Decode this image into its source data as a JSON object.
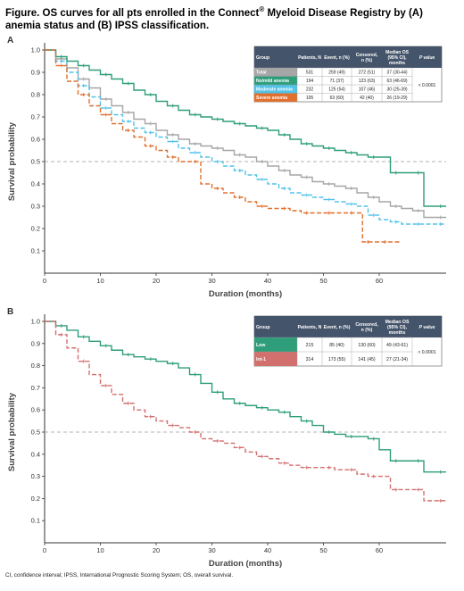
{
  "figure": {
    "title_pre": "Figure. OS curves for all pts enrolled in the Connect",
    "title_reg": "®",
    "title_post": " Myeloid Disease Registry by (A) anemia status and (B) IPSS classification.",
    "footnote": "CI, confidence interval; IPSS, International Prognostic Scoring System; OS, overall survival."
  },
  "table_headers": [
    "Group",
    "Patients, N",
    "Event, n (%)",
    "Censored, n (%)",
    "Median OS (95% CI), months",
    "P value"
  ],
  "chart_data": [
    {
      "panel": "A",
      "type": "line",
      "xlabel": "Duration (months)",
      "ylabel": "Survival probability",
      "xlim": [
        0,
        72
      ],
      "ylim": [
        0,
        1.0
      ],
      "xticks": [
        0,
        10,
        20,
        30,
        40,
        50,
        60
      ],
      "yticks": [
        0.1,
        0.2,
        0.3,
        0.4,
        0.5,
        0.6,
        0.7,
        0.8,
        0.9,
        1.0
      ],
      "reference_line": 0.5,
      "p_value": "< 0.0001",
      "series": [
        {
          "name": "Total",
          "color": "#a6a6a6",
          "patients": "531",
          "event": "259 (49)",
          "censored": "272 (51)",
          "median_os": "37 (30-44)",
          "x": [
            0,
            2,
            4,
            6,
            8,
            10,
            12,
            14,
            16,
            18,
            20,
            22,
            24,
            26,
            28,
            30,
            32,
            34,
            36,
            38,
            40,
            42,
            44,
            46,
            48,
            50,
            52,
            54,
            56,
            58,
            60,
            62,
            64,
            66,
            68,
            70
          ],
          "y": [
            1.0,
            0.96,
            0.92,
            0.87,
            0.83,
            0.78,
            0.75,
            0.72,
            0.69,
            0.67,
            0.64,
            0.62,
            0.6,
            0.58,
            0.57,
            0.56,
            0.55,
            0.53,
            0.52,
            0.5,
            0.48,
            0.46,
            0.44,
            0.43,
            0.41,
            0.4,
            0.39,
            0.38,
            0.36,
            0.34,
            0.32,
            0.3,
            0.29,
            0.28,
            0.25,
            0.25
          ]
        },
        {
          "name": "No/mild anemia",
          "color": "#2e9e7a",
          "patients": "194",
          "event": "71 (37)",
          "censored": "123 (63)",
          "median_os": "63 (46-69)",
          "x": [
            0,
            2,
            4,
            6,
            8,
            10,
            12,
            14,
            16,
            18,
            20,
            22,
            24,
            26,
            28,
            30,
            32,
            34,
            36,
            38,
            40,
            42,
            44,
            46,
            48,
            50,
            52,
            54,
            56,
            58,
            60,
            62,
            64,
            66,
            68,
            70
          ],
          "y": [
            1.0,
            0.97,
            0.95,
            0.93,
            0.91,
            0.89,
            0.87,
            0.85,
            0.82,
            0.8,
            0.77,
            0.75,
            0.73,
            0.71,
            0.7,
            0.69,
            0.68,
            0.67,
            0.66,
            0.65,
            0.64,
            0.62,
            0.6,
            0.58,
            0.57,
            0.56,
            0.55,
            0.54,
            0.53,
            0.52,
            0.52,
            0.45,
            0.45,
            0.45,
            0.3,
            0.3
          ]
        },
        {
          "name": "Moderate anemia",
          "color": "#52c2e8",
          "patients": "232",
          "event": "125 (54)",
          "censored": "107 (46)",
          "median_os": "30 (25-39)",
          "x": [
            0,
            2,
            4,
            6,
            8,
            10,
            12,
            14,
            16,
            18,
            20,
            22,
            24,
            26,
            28,
            30,
            32,
            34,
            36,
            38,
            40,
            42,
            44,
            46,
            48,
            50,
            52,
            54,
            56,
            58,
            60,
            62,
            64,
            66,
            68,
            70
          ],
          "y": [
            1.0,
            0.95,
            0.9,
            0.84,
            0.79,
            0.74,
            0.71,
            0.68,
            0.65,
            0.63,
            0.61,
            0.59,
            0.56,
            0.54,
            0.52,
            0.5,
            0.48,
            0.46,
            0.44,
            0.42,
            0.4,
            0.38,
            0.36,
            0.35,
            0.34,
            0.33,
            0.32,
            0.31,
            0.3,
            0.26,
            0.24,
            0.23,
            0.22,
            0.22,
            0.22,
            0.22
          ]
        },
        {
          "name": "Severe anemia",
          "color": "#e0702e",
          "patients": "105",
          "event": "63 (60)",
          "censored": "42 (40)",
          "median_os": "26 (19-29)",
          "x": [
            0,
            2,
            4,
            6,
            8,
            10,
            12,
            14,
            16,
            18,
            20,
            22,
            24,
            26,
            28,
            30,
            32,
            34,
            36,
            38,
            40,
            42,
            44,
            46,
            48,
            50,
            52,
            54,
            56,
            57,
            58,
            60,
            62
          ],
          "y": [
            1.0,
            0.93,
            0.86,
            0.8,
            0.75,
            0.71,
            0.67,
            0.64,
            0.61,
            0.57,
            0.55,
            0.52,
            0.5,
            0.5,
            0.4,
            0.38,
            0.36,
            0.34,
            0.32,
            0.3,
            0.29,
            0.29,
            0.28,
            0.27,
            0.27,
            0.27,
            0.27,
            0.27,
            0.27,
            0.14,
            0.14,
            0.14,
            0.14
          ]
        }
      ]
    },
    {
      "panel": "B",
      "type": "line",
      "xlabel": "Duration (months)",
      "ylabel": "Survival probability",
      "xlim": [
        0,
        72
      ],
      "ylim": [
        0,
        1.0
      ],
      "xticks": [
        0,
        10,
        20,
        30,
        40,
        50,
        60
      ],
      "yticks": [
        0.1,
        0.2,
        0.3,
        0.4,
        0.5,
        0.6,
        0.7,
        0.8,
        0.9,
        1.0
      ],
      "reference_line": 0.5,
      "p_value": "< 0.0001",
      "series": [
        {
          "name": "Low",
          "color": "#2e9e7a",
          "patients": "215",
          "event": "85 (40)",
          "censored": "130 (60)",
          "median_os": "49 (43-61)",
          "x": [
            0,
            2,
            4,
            6,
            8,
            10,
            12,
            14,
            16,
            18,
            20,
            22,
            24,
            26,
            28,
            30,
            32,
            34,
            36,
            38,
            40,
            42,
            44,
            46,
            48,
            50,
            52,
            54,
            56,
            58,
            60,
            62,
            64,
            66,
            68,
            70
          ],
          "y": [
            1.0,
            0.98,
            0.96,
            0.93,
            0.91,
            0.89,
            0.87,
            0.85,
            0.84,
            0.83,
            0.82,
            0.81,
            0.79,
            0.76,
            0.72,
            0.68,
            0.65,
            0.63,
            0.62,
            0.61,
            0.6,
            0.59,
            0.57,
            0.55,
            0.53,
            0.5,
            0.49,
            0.48,
            0.48,
            0.47,
            0.42,
            0.37,
            0.37,
            0.37,
            0.32,
            0.32
          ]
        },
        {
          "name": "Int-1",
          "color": "#d2706e",
          "patients": "314",
          "event": "173 (55)",
          "censored": "141 (45)",
          "median_os": "27 (21-34)",
          "x": [
            0,
            2,
            4,
            6,
            8,
            10,
            12,
            14,
            16,
            18,
            20,
            22,
            24,
            26,
            28,
            30,
            32,
            34,
            36,
            38,
            40,
            42,
            44,
            46,
            48,
            50,
            52,
            54,
            56,
            58,
            60,
            62,
            64,
            66,
            68,
            70
          ],
          "y": [
            1.0,
            0.94,
            0.88,
            0.82,
            0.76,
            0.71,
            0.67,
            0.63,
            0.6,
            0.57,
            0.55,
            0.53,
            0.52,
            0.5,
            0.47,
            0.46,
            0.45,
            0.43,
            0.41,
            0.39,
            0.38,
            0.36,
            0.35,
            0.34,
            0.34,
            0.34,
            0.33,
            0.33,
            0.31,
            0.3,
            0.3,
            0.24,
            0.24,
            0.24,
            0.19,
            0.19
          ]
        }
      ]
    }
  ]
}
